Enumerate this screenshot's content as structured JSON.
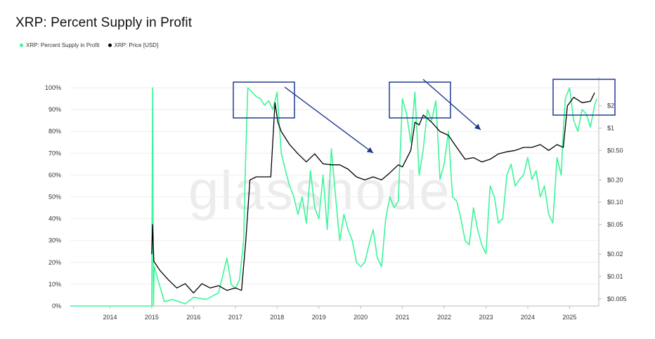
{
  "chart_data": {
    "type": "line",
    "title": "XRP: Percent Supply in Profit",
    "watermark": "glassnode",
    "legend": [
      {
        "name": "XRP: Percent Supply in Profit",
        "color": "#3df59a"
      },
      {
        "name": "XRP: Price [USD]",
        "color": "#000000"
      }
    ],
    "x_ticks": [
      "2014",
      "2015",
      "2016",
      "2017",
      "2018",
      "2019",
      "2020",
      "2021",
      "2022",
      "2023",
      "2024",
      "2025"
    ],
    "xlim": [
      2013.05,
      2025.7
    ],
    "y_left_ticks": [
      "0%",
      "10%",
      "20%",
      "30%",
      "40%",
      "50%",
      "60%",
      "70%",
      "80%",
      "90%",
      "100%"
    ],
    "y_left_lim": [
      0,
      100
    ],
    "y_right_ticks": [
      {
        "label": "$0.005",
        "value": 0.005
      },
      {
        "label": "$0.01",
        "value": 0.01
      },
      {
        "label": "$0.02",
        "value": 0.02
      },
      {
        "label": "$0.05",
        "value": 0.05
      },
      {
        "label": "$0.10",
        "value": 0.1
      },
      {
        "label": "$0.20",
        "value": 0.2
      },
      {
        "label": "$0.50",
        "value": 0.5
      },
      {
        "label": "$1",
        "value": 1
      },
      {
        "label": "$2",
        "value": 2
      }
    ],
    "y_right_scale": "log",
    "y_right_lim": [
      0.004,
      3.5
    ],
    "series": [
      {
        "name": "XRP: Percent Supply in Profit",
        "axis": "left",
        "x": [
          2013.05,
          2014.5,
          2015.0,
          2015.02,
          2015.04,
          2015.06,
          2015.3,
          2015.5,
          2015.8,
          2016.0,
          2016.3,
          2016.6,
          2016.8,
          2016.9,
          2017.0,
          2017.1,
          2017.2,
          2017.25,
          2017.3,
          2017.4,
          2017.5,
          2017.6,
          2017.7,
          2017.8,
          2017.9,
          2018.0,
          2018.1,
          2018.2,
          2018.3,
          2018.4,
          2018.5,
          2018.6,
          2018.7,
          2018.8,
          2018.9,
          2019.0,
          2019.1,
          2019.2,
          2019.3,
          2019.4,
          2019.5,
          2019.6,
          2019.7,
          2019.8,
          2019.9,
          2020.0,
          2020.1,
          2020.2,
          2020.3,
          2020.4,
          2020.5,
          2020.6,
          2020.7,
          2020.8,
          2020.9,
          2021.0,
          2021.1,
          2021.2,
          2021.3,
          2021.4,
          2021.5,
          2021.6,
          2021.7,
          2021.8,
          2021.9,
          2022.0,
          2022.1,
          2022.2,
          2022.3,
          2022.4,
          2022.5,
          2022.6,
          2022.7,
          2022.8,
          2022.9,
          2023.0,
          2023.1,
          2023.2,
          2023.3,
          2023.4,
          2023.5,
          2023.6,
          2023.7,
          2023.8,
          2023.9,
          2024.0,
          2024.1,
          2024.2,
          2024.3,
          2024.4,
          2024.5,
          2024.6,
          2024.7,
          2024.8,
          2024.85,
          2024.9,
          2025.0,
          2025.1,
          2025.2,
          2025.3,
          2025.4,
          2025.5,
          2025.6,
          2025.65
        ],
        "values": [
          0,
          0,
          0,
          100,
          0,
          18,
          2,
          3,
          1,
          4,
          3,
          6,
          22,
          10,
          8,
          12,
          30,
          70,
          100,
          98,
          96,
          95,
          92,
          94,
          90,
          98,
          70,
          62,
          55,
          50,
          42,
          50,
          38,
          62,
          45,
          40,
          60,
          35,
          72,
          50,
          30,
          42,
          35,
          30,
          20,
          18,
          20,
          28,
          35,
          22,
          18,
          40,
          50,
          45,
          48,
          95,
          88,
          75,
          98,
          60,
          72,
          90,
          85,
          94,
          58,
          65,
          80,
          50,
          48,
          40,
          30,
          28,
          45,
          35,
          28,
          24,
          55,
          50,
          38,
          40,
          60,
          65,
          55,
          58,
          60,
          68,
          58,
          62,
          50,
          55,
          42,
          38,
          68,
          60,
          80,
          95,
          100,
          85,
          80,
          90,
          88,
          82,
          92,
          95
        ]
      },
      {
        "name": "XRP: Price [USD]",
        "axis": "right",
        "x": [
          2015.0,
          2015.02,
          2015.05,
          2015.2,
          2015.4,
          2015.6,
          2015.8,
          2016.0,
          2016.2,
          2016.4,
          2016.6,
          2016.8,
          2017.0,
          2017.15,
          2017.25,
          2017.35,
          2017.5,
          2017.7,
          2017.85,
          2017.95,
          2018.02,
          2018.1,
          2018.3,
          2018.5,
          2018.7,
          2018.9,
          2019.1,
          2019.3,
          2019.5,
          2019.7,
          2019.9,
          2020.1,
          2020.3,
          2020.5,
          2020.7,
          2020.9,
          2021.0,
          2021.2,
          2021.3,
          2021.4,
          2021.5,
          2021.7,
          2021.9,
          2022.1,
          2022.3,
          2022.5,
          2022.7,
          2022.9,
          2023.1,
          2023.3,
          2023.5,
          2023.7,
          2023.9,
          2024.1,
          2024.3,
          2024.5,
          2024.7,
          2024.85,
          2024.95,
          2025.1,
          2025.3,
          2025.5,
          2025.6
        ],
        "values": [
          0.02,
          0.05,
          0.016,
          0.012,
          0.009,
          0.007,
          0.008,
          0.006,
          0.008,
          0.007,
          0.0075,
          0.0065,
          0.007,
          0.0065,
          0.03,
          0.2,
          0.22,
          0.22,
          0.22,
          2.2,
          1.2,
          0.9,
          0.6,
          0.45,
          0.35,
          0.45,
          0.33,
          0.32,
          0.32,
          0.28,
          0.22,
          0.2,
          0.22,
          0.2,
          0.25,
          0.32,
          0.3,
          0.5,
          1.2,
          1.1,
          1.5,
          1.2,
          0.9,
          0.8,
          0.55,
          0.38,
          0.4,
          0.35,
          0.38,
          0.45,
          0.48,
          0.5,
          0.55,
          0.55,
          0.6,
          0.5,
          0.6,
          0.55,
          2.0,
          2.6,
          2.2,
          2.3,
          3.0
        ]
      }
    ]
  }
}
